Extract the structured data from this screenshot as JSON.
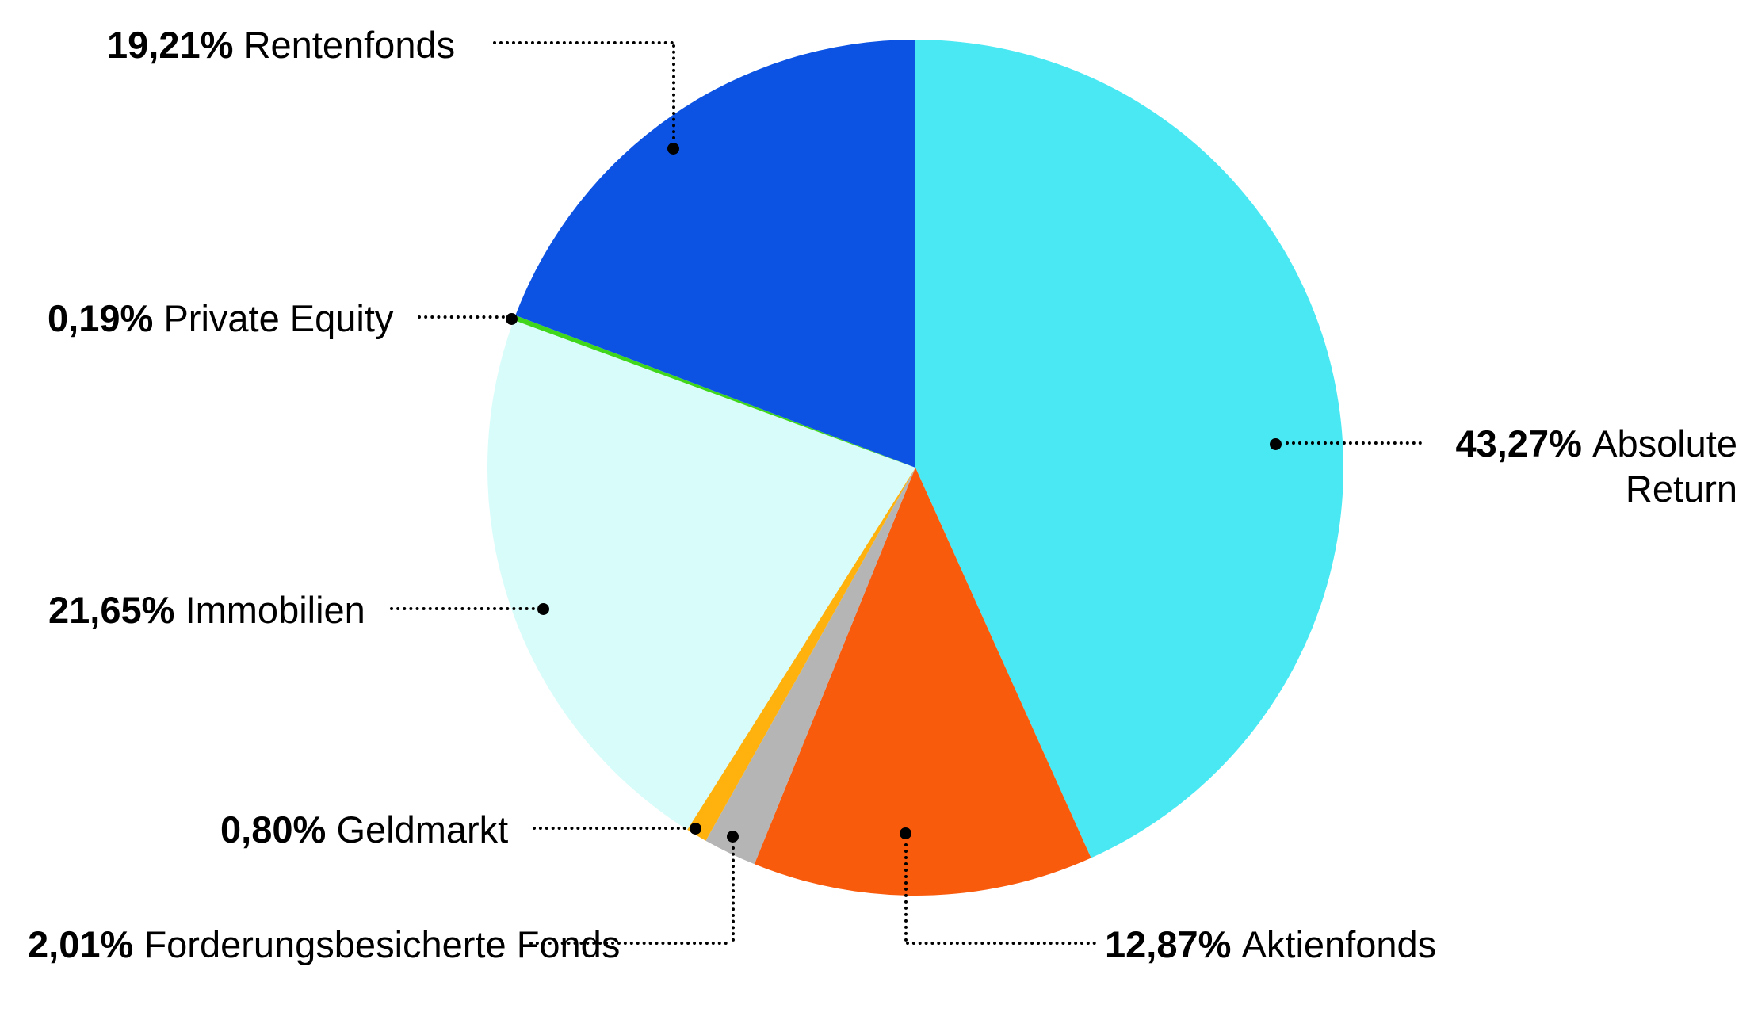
{
  "page": {
    "background": "#FFFFFF",
    "text_color": "#000000"
  },
  "chart_data": {
    "type": "pie",
    "title": "",
    "unit": "percent",
    "number_format": "de-DE",
    "start_angle_deg": 0,
    "direction": "clockwise",
    "legend_position": "callout-labels",
    "grid": false,
    "slices": [
      {
        "key": "absolute-return",
        "label": "Absolute Return",
        "value": 43.27,
        "value_label": "43,27%",
        "color": "#49E8F3"
      },
      {
        "key": "aktienfonds",
        "label": "Aktienfonds",
        "value": 12.87,
        "value_label": "12,87%",
        "color": "#F95B0D"
      },
      {
        "key": "forderungsbesicherte-fonds",
        "label": "Forderungsbesicherte Fonds",
        "value": 2.01,
        "value_label": "2,01%",
        "color": "#B5B5B5"
      },
      {
        "key": "geldmarkt",
        "label": "Geldmarkt",
        "value": 0.8,
        "value_label": "0,80%",
        "color": "#FFB20D"
      },
      {
        "key": "immobilien",
        "label": "Immobilien",
        "value": 21.65,
        "value_label": "21,65%",
        "color": "#D8FCFA"
      },
      {
        "key": "private-equity",
        "label": "Private Equity",
        "value": 0.19,
        "value_label": "0,19%",
        "color": "#3FD61C"
      },
      {
        "key": "rentenfonds",
        "label": "Rentenfonds",
        "value": 19.21,
        "value_label": "19,21%",
        "color": "#0C53E4"
      }
    ]
  }
}
